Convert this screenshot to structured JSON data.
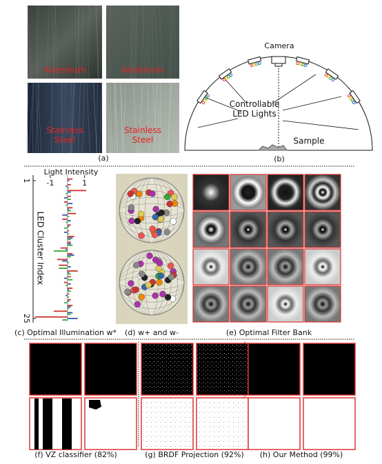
{
  "panel_a": {
    "tiles": [
      "Aluminum",
      "Aluminum",
      "Stainless Steel",
      "Stainless Steel"
    ],
    "caption": "(a)"
  },
  "panel_b": {
    "camera": "Camera",
    "lights": "Controllable LED Lights",
    "sample": "Sample",
    "caption": "(b)"
  },
  "chart_data": {
    "type": "bar",
    "orientation": "horizontal",
    "x_label": "Light Intensity",
    "y_label": "LED Cluster Index",
    "xlim": [
      -2,
      2.5
    ],
    "xticks": [
      -1,
      1
    ],
    "ylim": [
      1,
      25
    ],
    "yticks": [
      1,
      25
    ],
    "series": [
      {
        "name": "red",
        "color": "#c8332b",
        "values": [
          0.3,
          0.2,
          1.1,
          0.2,
          -0.2,
          0.3,
          0.5,
          -0.3,
          0.2,
          0.1,
          0.4,
          0.2,
          -0.4,
          0.3,
          -0.6,
          -0.5,
          0.6,
          0.2,
          -0.2,
          0.3,
          0.1,
          0.2,
          0.3,
          -0.8,
          -1.9
        ]
      },
      {
        "name": "blue",
        "color": "#3355aa",
        "values": [
          0.1,
          -0.1,
          0.2,
          -0.2,
          0.3,
          0.1,
          -0.3,
          0.2,
          0.1,
          -0.2,
          0.3,
          0.2,
          -0.1,
          0.4,
          -0.3,
          0.2,
          0.1,
          -0.2,
          0.2,
          0.1,
          -0.1,
          0.1,
          0.2,
          0.3,
          0.6
        ]
      },
      {
        "name": "green",
        "color": "#33aa33",
        "values": [
          0.0,
          0.1,
          -0.1,
          0.2,
          -0.1,
          0.2,
          0.1,
          -0.1,
          -0.2,
          0.1,
          0.2,
          0.3,
          -0.8,
          0.2,
          0.1,
          -0.5,
          0.2,
          0.3,
          -0.1,
          0.2,
          0.1,
          -0.2,
          0.1,
          0.2,
          -0.3
        ]
      }
    ]
  },
  "captions": {
    "c": "(c) Optimal Illumination w*",
    "d": "(d) w+ and w-",
    "e": "(e) Optimal Filter Bank",
    "f": "(f) VZ classifier (82%)",
    "g": "(g) BRDF Projection (92%)",
    "h": "(h) Our Method (99%)"
  }
}
